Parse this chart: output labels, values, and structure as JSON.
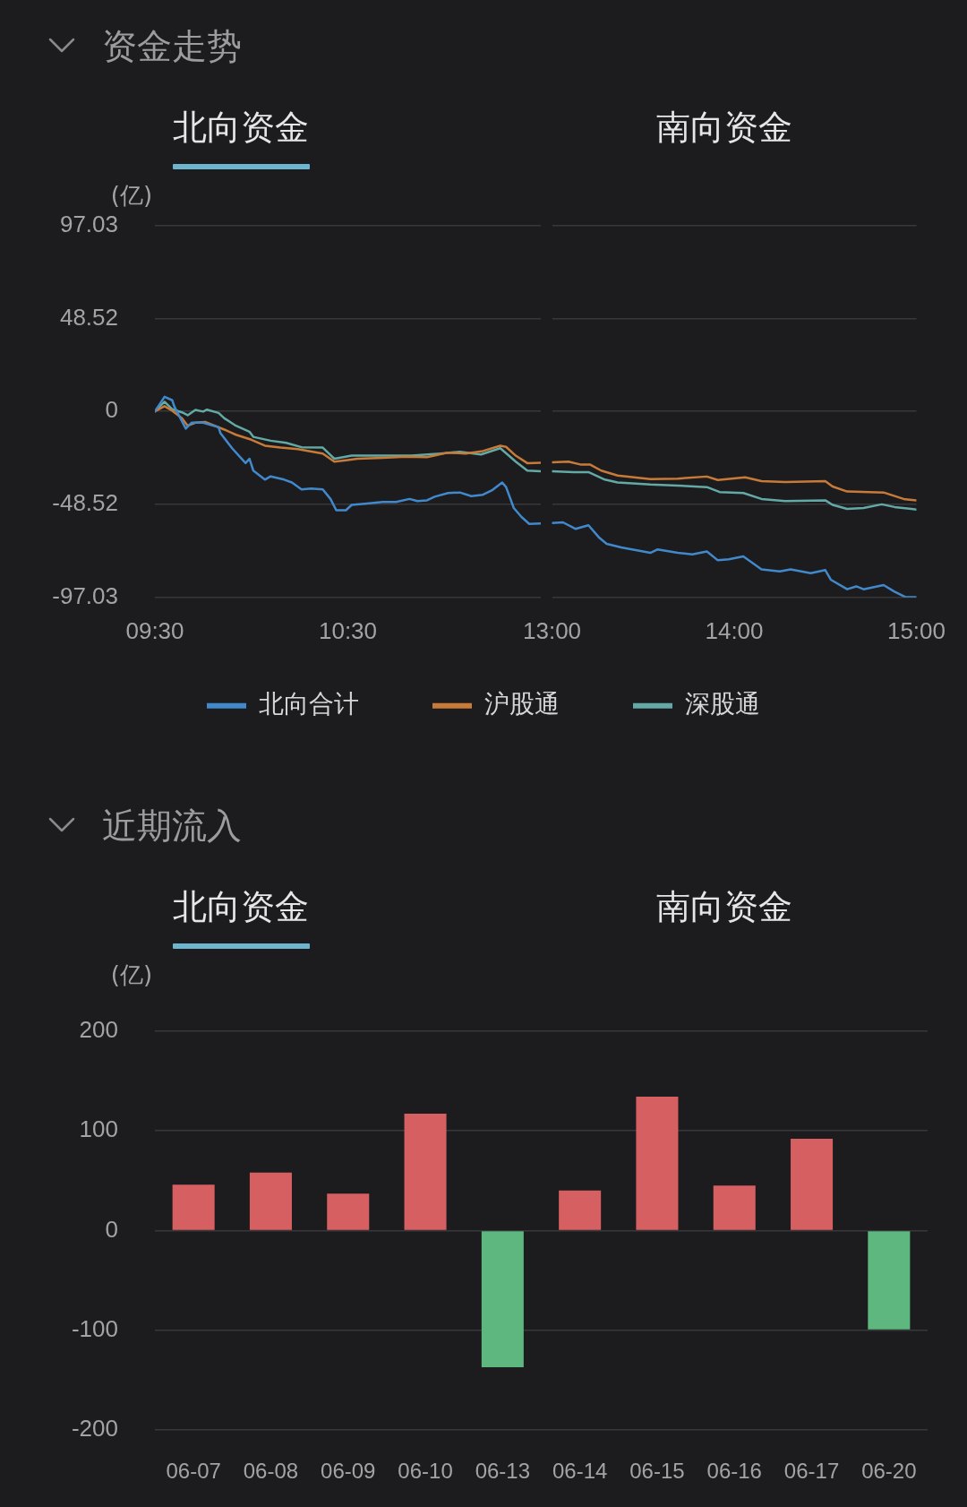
{
  "chart_data": [
    {
      "type": "line",
      "title": "资金走势",
      "annotations": [
        "北向资金",
        "南向资金"
      ],
      "ylabel": "(亿)",
      "xlim": [
        9.5,
        11.5
      ],
      "xticks": [
        {
          "value": 9.5,
          "label": "09:30"
        },
        {
          "value": 10.5,
          "label": "10:30"
        }
      ],
      "ylim": [
        -97.03,
        97.03
      ],
      "yticks": [
        -97.03,
        -48.52,
        0,
        48.52,
        97.03
      ],
      "grid": "y",
      "legend": "bottom",
      "marker": "none",
      "series": [
        {
          "name": "北向合计",
          "color": "#4189cb",
          "x": [
            9.5,
            9.55,
            9.59,
            9.6,
            9.66,
            9.69,
            9.75,
            9.83,
            9.84,
            9.9,
            9.97,
            9.99,
            10.01,
            10.07,
            10.1,
            10.17,
            10.21,
            10.26,
            10.31,
            10.37,
            10.41,
            10.44,
            10.49,
            10.52,
            10.6,
            10.68,
            10.75,
            10.82,
            10.86,
            10.91,
            10.95,
            11.02,
            11.08,
            11.14,
            11.2,
            11.25,
            11.3,
            11.32,
            11.36,
            11.4,
            11.44,
            11.5
          ],
          "values": [
            0,
            7.6,
            5.8,
            2.7,
            -9.0,
            -5.9,
            -5.9,
            -8.3,
            -11.4,
            -19.2,
            -27.0,
            -24.7,
            -30.9,
            -35.6,
            -33.9,
            -35.6,
            -37.1,
            -40.7,
            -40.2,
            -40.7,
            -45.7,
            -51.6,
            -51.6,
            -48.8,
            -48.1,
            -47.3,
            -47.3,
            -45.7,
            -46.8,
            -46.4,
            -44.5,
            -42.6,
            -42.3,
            -44.2,
            -43.5,
            -41.0,
            -37.1,
            -39.5,
            -50.4,
            -55.1,
            -58.7,
            -58.5
          ]
        },
        {
          "name": "沪股通",
          "color": "#c87b38",
          "x": [
            9.5,
            9.55,
            9.59,
            9.64,
            9.67,
            9.71,
            9.76,
            9.81,
            9.86,
            9.92,
            10.0,
            10.07,
            10.15,
            10.24,
            10.37,
            10.43,
            10.49,
            10.55,
            10.68,
            10.8,
            10.91,
            11.02,
            11.11,
            11.2,
            11.29,
            11.32,
            11.37,
            11.43,
            11.5
          ],
          "values": [
            0,
            2.7,
            0.3,
            -3.6,
            -7.5,
            -5.9,
            -5.5,
            -7.5,
            -9.5,
            -12.2,
            -14.8,
            -17.9,
            -18.9,
            -19.7,
            -22.0,
            -26.2,
            -25.5,
            -24.7,
            -24.2,
            -23.6,
            -23.9,
            -21.5,
            -22.0,
            -20.7,
            -17.9,
            -18.5,
            -23.1,
            -27.0,
            -26.8
          ]
        },
        {
          "name": "深股通",
          "color": "#63a9a5",
          "x": [
            9.5,
            9.55,
            9.59,
            9.64,
            9.67,
            9.71,
            9.75,
            9.77,
            9.83,
            9.86,
            9.92,
            9.99,
            10.01,
            10.1,
            10.18,
            10.26,
            10.37,
            10.43,
            10.52,
            10.68,
            10.83,
            10.98,
            11.08,
            11.19,
            11.29,
            11.37,
            11.43,
            11.5
          ],
          "values": [
            0,
            5.0,
            1.1,
            -0.5,
            -2.0,
            0.8,
            -0.1,
            0.9,
            -0.8,
            -3.6,
            -7.5,
            -10.6,
            -13.3,
            -15.3,
            -16.4,
            -18.7,
            -18.9,
            -24.7,
            -23.1,
            -23.1,
            -23.1,
            -22.0,
            -21.1,
            -22.5,
            -19.2,
            -26.2,
            -30.9,
            -31.2
          ]
        }
      ]
    },
    {
      "type": "line",
      "xlim": [
        13,
        15
      ],
      "xticks": [
        {
          "value": 13,
          "label": "13:00"
        },
        {
          "value": 14,
          "label": "14:00"
        },
        {
          "value": 15,
          "label": "15:00"
        }
      ],
      "ylim": [
        -97.03,
        97.03
      ],
      "yticks": [
        -97.03,
        -48.52,
        0,
        48.52,
        97.03
      ],
      "tick_labels": "x",
      "grid": "y",
      "marker": "none",
      "series": [
        {
          "color": "#4189cb",
          "x": [
            13.0,
            13.06,
            13.13,
            13.2,
            13.26,
            13.3,
            13.38,
            13.54,
            13.58,
            13.69,
            13.77,
            13.85,
            13.91,
            13.97,
            14.05,
            14.15,
            14.25,
            14.31,
            14.42,
            14.5,
            14.53,
            14.62,
            14.67,
            14.71,
            14.82,
            14.88,
            14.94,
            15
          ],
          "values": [
            -58.2,
            -57.9,
            -61.3,
            -59.4,
            -66.0,
            -69.1,
            -71.0,
            -73.8,
            -72.0,
            -73.8,
            -74.6,
            -73.1,
            -77.7,
            -77.2,
            -75.7,
            -82.4,
            -83.5,
            -82.4,
            -84.4,
            -82.8,
            -87.8,
            -92.8,
            -91.3,
            -92.8,
            -90.6,
            -94.1,
            -96.9,
            -96.9
          ]
        },
        {
          "color": "#c87b38",
          "x": [
            13.0,
            13.09,
            13.16,
            13.21,
            13.27,
            13.36,
            13.54,
            13.69,
            13.85,
            13.91,
            14.06,
            14.15,
            14.28,
            14.5,
            14.54,
            14.62,
            14.82,
            14.93,
            15
          ],
          "values": [
            -26.6,
            -26.2,
            -27.8,
            -27.8,
            -30.9,
            -33.5,
            -35.3,
            -35.1,
            -34.0,
            -35.8,
            -34.4,
            -36.4,
            -36.9,
            -36.4,
            -39.2,
            -41.8,
            -42.3,
            -45.7,
            -46.5
          ]
        },
        {
          "color": "#63a9a5",
          "x": [
            13.0,
            13.12,
            13.2,
            13.29,
            13.36,
            13.54,
            13.69,
            13.85,
            13.92,
            14.05,
            14.15,
            14.28,
            14.5,
            14.54,
            14.62,
            14.71,
            14.81,
            14.88,
            15
          ],
          "values": [
            -31.3,
            -31.7,
            -31.7,
            -35.6,
            -37.1,
            -38.2,
            -38.7,
            -39.5,
            -42.1,
            -42.6,
            -45.7,
            -46.8,
            -46.4,
            -48.8,
            -50.9,
            -50.4,
            -48.5,
            -49.9,
            -51.2
          ]
        }
      ]
    },
    {
      "type": "bar",
      "title": "近期流入",
      "annotations": [
        "北向资金",
        "南向资金"
      ],
      "ylabel": "(亿)",
      "categories": [
        "06-07",
        "06-08",
        "06-09",
        "06-10",
        "06-13",
        "06-14",
        "06-15",
        "06-16",
        "06-17",
        "06-20"
      ],
      "values": [
        46,
        58,
        37,
        117,
        -137,
        40,
        134,
        45,
        92,
        -99
      ],
      "colors": [
        "#d65f62",
        "#d65f62",
        "#d65f62",
        "#d65f62",
        "#5db77e",
        "#d65f62",
        "#d65f62",
        "#d65f62",
        "#d65f62",
        "#5db77e"
      ],
      "ylim": [
        -200,
        200
      ],
      "yticks": [
        -200,
        -100,
        0,
        100,
        200
      ],
      "grid": "y"
    }
  ]
}
